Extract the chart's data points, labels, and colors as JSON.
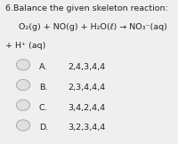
{
  "title_line1": "6.Balance the given skeleton reaction:",
  "reaction_line": "     O₂(g) + NO(g) + H₂O(ℓ) → NO₃⁻(aq)",
  "reaction_cont": "+ H⁺ (aq)",
  "options": [
    {
      "label": "A.",
      "value": "2,4,3,4,4"
    },
    {
      "label": "B.",
      "value": "2,3,4,4,4"
    },
    {
      "label": "C.",
      "value": "3,4,2,4,4"
    },
    {
      "label": "D.",
      "value": "3,2,3,4,4"
    }
  ],
  "bg_color": "#efefef",
  "text_color": "#222222",
  "circle_face": "#e0e0e0",
  "circle_edge": "#aaaaaa",
  "title_fontsize": 6.8,
  "reaction_fontsize": 6.8,
  "option_fontsize": 6.8,
  "figwidth": 2.0,
  "figheight": 1.62,
  "dpi": 100
}
